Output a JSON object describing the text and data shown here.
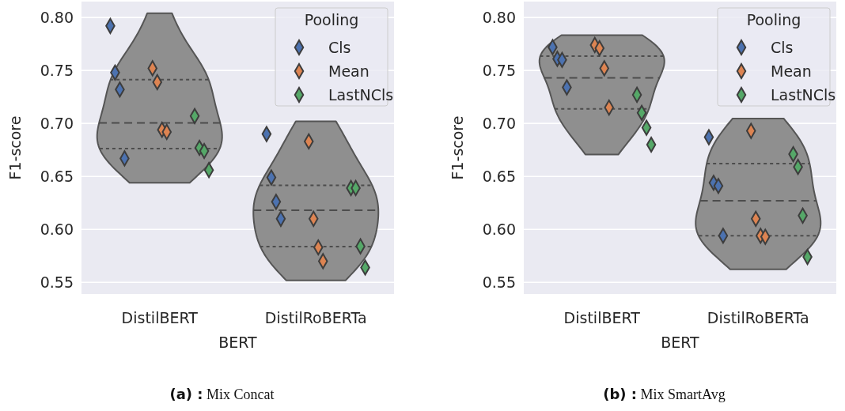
{
  "chart_data": [
    {
      "type": "scatter",
      "categories": [
        "DistilBERT",
        "DistilRoBERTa"
      ],
      "xlabel": "BERT",
      "ylabel": "F1-score",
      "ylim": [
        0.539,
        0.815
      ],
      "yticks": [
        0.55,
        {
          "value": 0.6,
          "label": "0.60"
        },
        0.65,
        {
          "value": 0.7,
          "label": "0.70"
        },
        0.75,
        {
          "value": 0.8,
          "label": "0.80"
        }
      ],
      "grid": "y",
      "legend": "top right",
      "legend_title": "Pooling",
      "marker": "diamond",
      "annotations": [
        "(a) : Mix Concat"
      ],
      "series": [
        {
          "type": "scatter",
          "name": "Cls",
          "color": "#4c72b0",
          "x": [
            "DistilBERT",
            "DistilBERT",
            "DistilBERT",
            "DistilBERT",
            "DistilRoBERTa",
            "DistilRoBERTa",
            "DistilRoBERTa",
            "DistilRoBERTa"
          ],
          "values": [
            0.792,
            0.748,
            0.732,
            0.667,
            0.69,
            0.649,
            0.626,
            0.61
          ]
        },
        {
          "type": "scatter",
          "name": "Mean",
          "color": "#dd8452",
          "x": [
            "DistilBERT",
            "DistilBERT",
            "DistilBERT",
            "DistilBERT",
            "DistilRoBERTa",
            "DistilRoBERTa",
            "DistilRoBERTa",
            "DistilRoBERTa"
          ],
          "values": [
            0.752,
            0.739,
            0.694,
            0.692,
            0.683,
            0.61,
            0.583,
            0.57
          ]
        },
        {
          "type": "scatter",
          "name": "LastNCls",
          "color": "#55a868",
          "x": [
            "DistilBERT",
            "DistilBERT",
            "DistilBERT",
            "DistilBERT",
            "DistilRoBERTa",
            "DistilRoBERTa",
            "DistilRoBERTa",
            "DistilRoBERTa"
          ],
          "values": [
            0.707,
            0.677,
            0.674,
            0.656,
            0.639,
            0.639,
            0.584,
            0.564
          ]
        }
      ]
    },
    {
      "type": "scatter",
      "categories": [
        "DistilBERT",
        "DistilRoBERTa"
      ],
      "xlabel": "BERT",
      "ylabel": "F1-score",
      "ylim": [
        0.539,
        0.815
      ],
      "yticks": [
        0.55,
        {
          "value": 0.6,
          "label": "0.60"
        },
        0.65,
        {
          "value": 0.7,
          "label": "0.70"
        },
        0.75,
        {
          "value": 0.8,
          "label": "0.80"
        }
      ],
      "grid": "y",
      "legend": "top right",
      "legend_title": "Pooling",
      "marker": "diamond",
      "annotations": [
        "(b) : Mix SmartAvg"
      ],
      "series": [
        {
          "type": "scatter",
          "name": "Cls",
          "color": "#4c72b0",
          "x": [
            "DistilBERT",
            "DistilBERT",
            "DistilBERT",
            "DistilBERT",
            "DistilRoBERTa",
            "DistilRoBERTa",
            "DistilRoBERTa",
            "DistilRoBERTa"
          ],
          "values": [
            0.772,
            0.761,
            0.76,
            0.734,
            0.687,
            0.644,
            0.641,
            0.594
          ]
        },
        {
          "type": "scatter",
          "name": "Mean",
          "color": "#dd8452",
          "x": [
            "DistilBERT",
            "DistilBERT",
            "DistilBERT",
            "DistilBERT",
            "DistilRoBERTa",
            "DistilRoBERTa",
            "DistilRoBERTa",
            "DistilRoBERTa"
          ],
          "values": [
            0.774,
            0.771,
            0.752,
            0.715,
            0.693,
            0.61,
            0.594,
            0.593
          ]
        },
        {
          "type": "scatter",
          "name": "LastNCls",
          "color": "#55a868",
          "x": [
            "DistilBERT",
            "DistilBERT",
            "DistilBERT",
            "DistilBERT",
            "DistilRoBERTa",
            "DistilRoBERTa",
            "DistilRoBERTa",
            "DistilRoBERTa"
          ],
          "values": [
            0.727,
            0.71,
            0.696,
            0.68,
            0.671,
            0.659,
            0.613,
            0.574
          ]
        }
      ]
    }
  ]
}
